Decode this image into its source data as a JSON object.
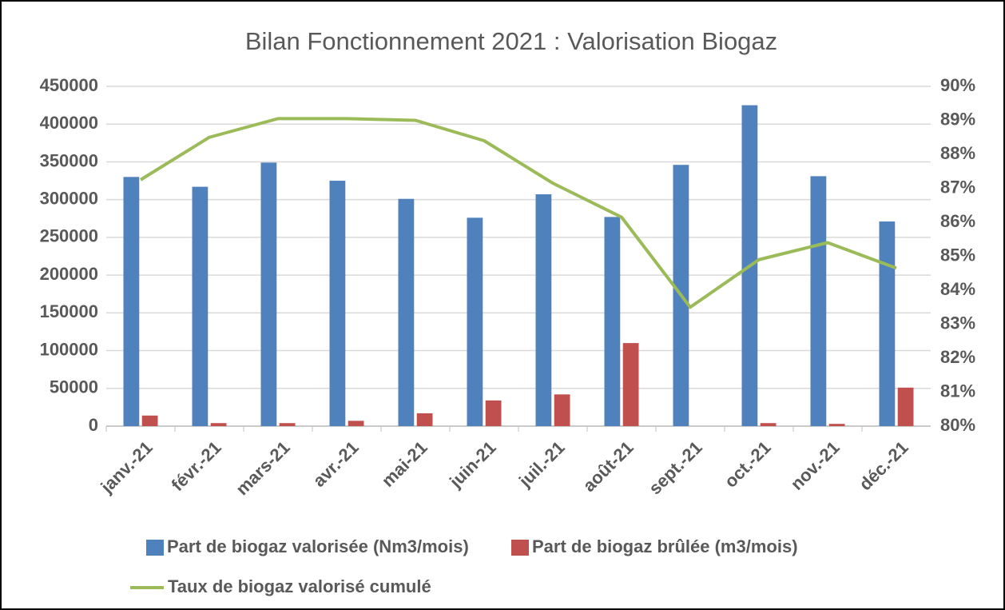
{
  "chart_data": {
    "type": "bar",
    "title": "Bilan Fonctionnement 2021 : Valorisation Biogaz",
    "categories": [
      "janv.-21",
      "févr.-21",
      "mars-21",
      "avr.-21",
      "mai-21",
      "juin-21",
      "juil.-21",
      "août-21",
      "sept.-21",
      "oct.-21",
      "nov.-21",
      "déc.-21"
    ],
    "series": [
      {
        "name": "Part de biogaz valorisée (Nm3/mois)",
        "color": "#4f81bd",
        "type": "bar",
        "values": [
          330000,
          317000,
          349000,
          325000,
          301000,
          276000,
          307000,
          277000,
          346000,
          425000,
          331000,
          271000
        ]
      },
      {
        "name": "Part de biogaz brûlée (m3/mois)",
        "color": "#c0504d",
        "type": "bar",
        "values": [
          14000,
          4000,
          4000,
          7000,
          17000,
          34000,
          42000,
          110000,
          0,
          4000,
          3000,
          51000
        ]
      },
      {
        "name": "Taux de biogaz valorisé cumulé",
        "color": "#9bbb59",
        "type": "line",
        "axis": "y2",
        "values": [
          87.25,
          88.5,
          89.05,
          89.05,
          89.0,
          88.4,
          87.15,
          86.15,
          83.5,
          84.9,
          85.4,
          84.65
        ]
      }
    ],
    "ylim": [
      0,
      450000
    ],
    "yticks": [
      0,
      50000,
      100000,
      150000,
      200000,
      250000,
      300000,
      350000,
      400000,
      450000
    ],
    "y2lim": [
      80,
      90
    ],
    "y2ticks": [
      {
        "value": 80,
        "label": "80%"
      },
      {
        "value": 81,
        "label": "81%"
      },
      {
        "value": 82,
        "label": "82%"
      },
      {
        "value": 83,
        "label": "83%"
      },
      {
        "value": 84,
        "label": "84%"
      },
      {
        "value": 85,
        "label": "85%"
      },
      {
        "value": 86,
        "label": "86%"
      },
      {
        "value": 87,
        "label": "87%"
      },
      {
        "value": 88,
        "label": "88%"
      },
      {
        "value": 89,
        "label": "89%"
      },
      {
        "value": 90,
        "label": "90%"
      }
    ],
    "grid": true
  }
}
